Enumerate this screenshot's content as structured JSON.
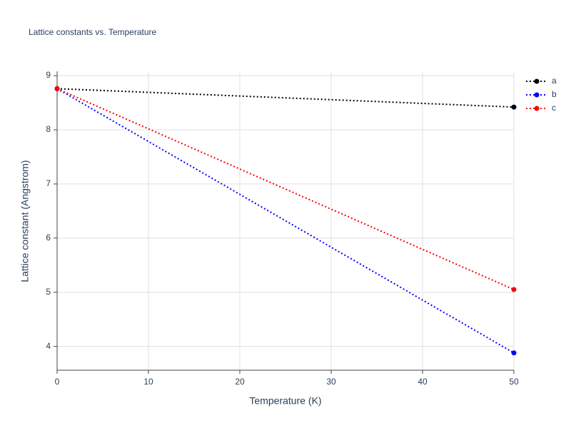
{
  "chart_data": {
    "type": "line",
    "title": "Lattice constants vs. Temperature",
    "x_label": "Temperature (K)",
    "y_label": "Lattice constant (Angstrom)",
    "x": [
      0,
      50
    ],
    "series": [
      {
        "name": "a",
        "color": "#000000",
        "values": [
          8.76,
          8.42
        ]
      },
      {
        "name": "b",
        "color": "#0000ff",
        "values": [
          8.76,
          3.88
        ]
      },
      {
        "name": "c",
        "color": "#ff0000",
        "values": [
          8.76,
          5.05
        ]
      }
    ],
    "xlim": [
      0,
      50
    ],
    "xticks": [
      0,
      10,
      20,
      30,
      40,
      50
    ],
    "ylim": [
      3.56,
      9.08
    ],
    "yticks": [
      4,
      5,
      6,
      7,
      8,
      9
    ],
    "grid": true,
    "legend": "top-right"
  }
}
